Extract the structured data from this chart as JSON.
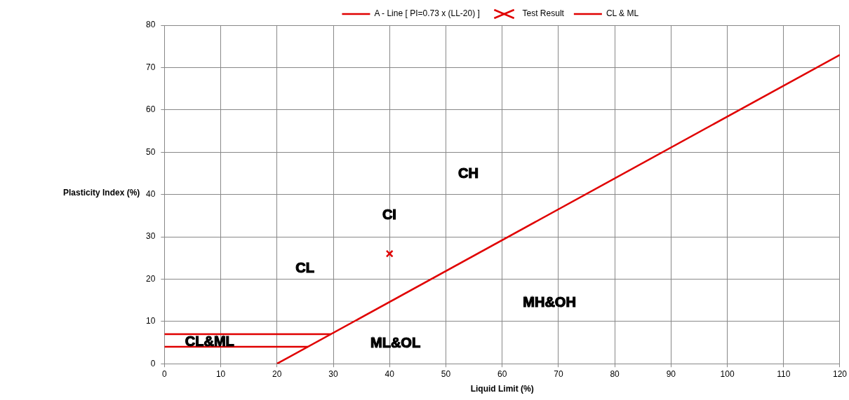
{
  "chart_data": {
    "type": "line",
    "xlabel": "Liquid Limit (%)",
    "ylabel": "Plasticity Index (%)",
    "xlim": [
      0,
      120
    ],
    "xticks": [
      0,
      10,
      20,
      30,
      40,
      50,
      60,
      70,
      80,
      90,
      100,
      110,
      120
    ],
    "ylim": [
      0,
      80
    ],
    "yticks": [
      0,
      10,
      20,
      30,
      40,
      50,
      60,
      70,
      80
    ],
    "grid": true,
    "legend": "top",
    "series": [
      {
        "name": "A - Line [ PI=0.73 x (LL-20) ]",
        "color": "#e00000",
        "marker": "none",
        "x": [
          20,
          120
        ],
        "values": [
          0,
          73
        ]
      },
      {
        "name": "Test Result",
        "type": "scatter",
        "color": "#e00000",
        "marker": "cross",
        "x": [
          40
        ],
        "values": [
          26
        ]
      },
      {
        "name": "CL & ML",
        "color": "#e00000",
        "marker": "none",
        "x": [
          0,
          29.6,
          null,
          0,
          25.5
        ],
        "values": [
          7,
          7,
          null,
          4,
          4
        ]
      }
    ],
    "annotations": [
      "CH",
      "CI",
      "CL",
      "MH&OH",
      "ML&OL",
      "CL&ML"
    ]
  }
}
